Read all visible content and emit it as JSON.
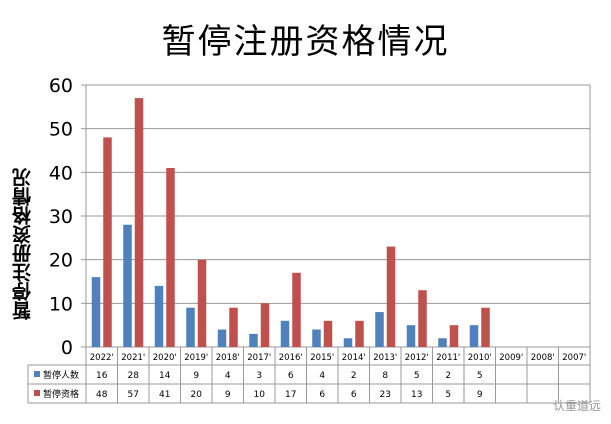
{
  "title": "暂停注册资格情况",
  "watermark": "认重道远",
  "chart_data": {
    "type": "bar",
    "title": "暂停注册资格情况",
    "xlabel": "",
    "ylabel": "暂停注册资格情况",
    "ylim": [
      0,
      60
    ],
    "yticks": [
      0,
      10,
      20,
      30,
      40,
      50,
      60
    ],
    "categories": [
      "2022'",
      "2021'",
      "2020'",
      "2019'",
      "2018'",
      "2017'",
      "2016'",
      "2015'",
      "2014'",
      "2013'",
      "2012'",
      "2011'",
      "2010'",
      "2009'",
      "2008'",
      "2007'"
    ],
    "series": [
      {
        "name": "暂停人数",
        "color": "#4f81bd",
        "values": [
          16,
          28,
          14,
          9,
          4,
          3,
          6,
          4,
          2,
          8,
          5,
          2,
          5,
          null,
          null,
          null
        ]
      },
      {
        "name": "暂停资格",
        "color": "#c0504d",
        "values": [
          48,
          57,
          41,
          20,
          9,
          10,
          17,
          6,
          6,
          23,
          13,
          5,
          9,
          null,
          null,
          null
        ]
      }
    ],
    "grid": true,
    "legend": "data-table-left"
  }
}
